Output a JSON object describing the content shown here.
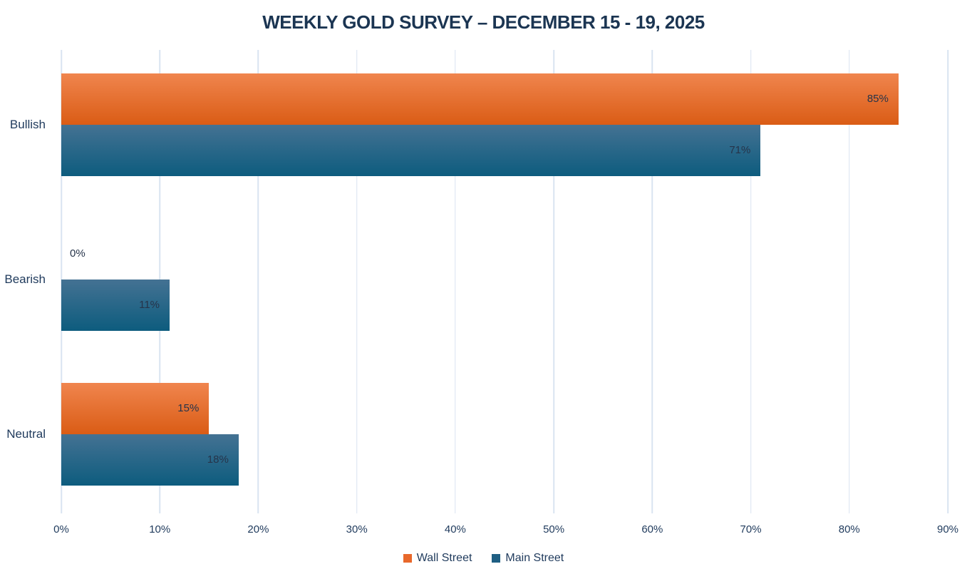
{
  "chart_data": {
    "type": "bar",
    "orientation": "horizontal",
    "title": "WEEKLY GOLD SURVEY – DECEMBER 15 - 19, 2025",
    "categories": [
      "Bullish",
      "Bearish",
      "Neutral"
    ],
    "series": [
      {
        "name": "Wall Street",
        "values": [
          85,
          0,
          15
        ],
        "labels": [
          "85%",
          "0%",
          "15%"
        ],
        "color_top": "#f0854e",
        "color_bottom": "#da5c15",
        "legend_color": "#e8682b"
      },
      {
        "name": "Main Street",
        "values": [
          71,
          11,
          18
        ],
        "labels": [
          "71%",
          "11%",
          "18%"
        ],
        "color_top": "#447293",
        "color_bottom": "#0d5c7e",
        "legend_color": "#1f5f83"
      }
    ],
    "x_ticks": [
      "0%",
      "10%",
      "20%",
      "30%",
      "40%",
      "50%",
      "60%",
      "70%",
      "80%",
      "90%"
    ],
    "x_tick_values": [
      0,
      10,
      20,
      30,
      40,
      50,
      60,
      70,
      80,
      90
    ],
    "xlim": [
      0,
      90
    ],
    "grid": "vertical-only",
    "legend_position": "bottom-center",
    "colors": {
      "title_text": "#1b3552",
      "axis_text": "#1f3a5c",
      "value_label_text": "#26344a",
      "gridline": "#d9e4f1",
      "background": "#ffffff"
    }
  }
}
